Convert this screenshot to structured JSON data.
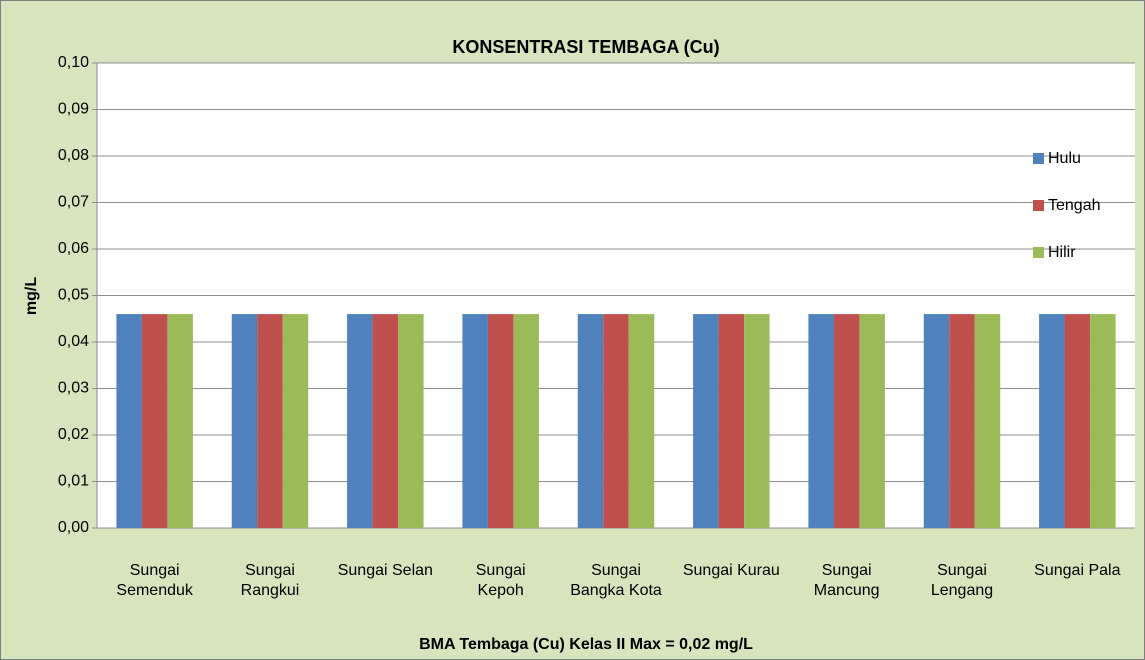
{
  "chart_data": {
    "type": "bar",
    "title": "KONSENTRASI  TEMBAGA (Cu)",
    "y_label": "mg/L",
    "note": "BMA  Tembaga (Cu) Kelas II Max =  0,02 mg/L",
    "categories": [
      "Sungai Semenduk",
      "Sungai Rangkui",
      "Sungai Selan",
      "Sungai Kepoh",
      "Sungai Bangka Kota",
      "Sungai Kurau",
      "Sungai Mancung",
      "Sungai Lengang",
      "Sungai Pala"
    ],
    "series": [
      {
        "name": "Hulu",
        "color": "#4f81bd",
        "values": [
          0.046,
          0.046,
          0.046,
          0.046,
          0.046,
          0.046,
          0.046,
          0.046,
          0.046
        ]
      },
      {
        "name": "Tengah",
        "color": "#c0504d",
        "values": [
          0.046,
          0.046,
          0.046,
          0.046,
          0.046,
          0.046,
          0.046,
          0.046,
          0.046
        ]
      },
      {
        "name": "Hilir",
        "color": "#9bbb59",
        "values": [
          0.046,
          0.046,
          0.046,
          0.046,
          0.046,
          0.046,
          0.046,
          0.046,
          0.046
        ]
      }
    ],
    "ylim": [
      0,
      0.1
    ],
    "yticks": [
      {
        "value": 0,
        "label": "0,00"
      },
      {
        "value": 0.01,
        "label": "0,01"
      },
      {
        "value": 0.02,
        "label": "0,02"
      },
      {
        "value": 0.03,
        "label": "0,03"
      },
      {
        "value": 0.04,
        "label": "0,04"
      },
      {
        "value": 0.05,
        "label": "0,05"
      },
      {
        "value": 0.06,
        "label": "0,06"
      },
      {
        "value": 0.07,
        "label": "0,07"
      },
      {
        "value": 0.08,
        "label": "0,08"
      },
      {
        "value": 0.09,
        "label": "0,09"
      },
      {
        "value": 0.1,
        "label": "0,10"
      }
    ],
    "grid": true,
    "legend": "right"
  }
}
